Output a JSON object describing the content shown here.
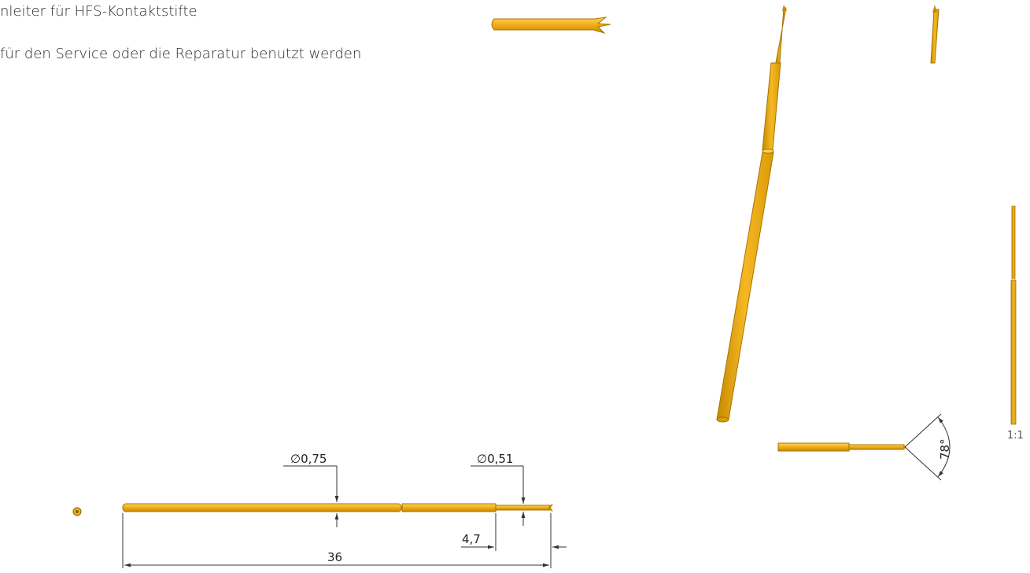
{
  "header": {
    "title": "nleiter für HFS-Kontaktstifte",
    "subtitle": "für den Service oder die Reparatur benutzt werden"
  },
  "colors": {
    "gold": "#f2b01e",
    "gold_dark": "#c78a00",
    "gold_light": "#ffd45c",
    "dimension_line": "#333333"
  },
  "dimensions": {
    "diameter_large": "∅0,75",
    "diameter_small": "∅0,51",
    "tip_length": "4,7",
    "total_length": "36",
    "crown_angle": "78°"
  },
  "scale_label": "1:1"
}
